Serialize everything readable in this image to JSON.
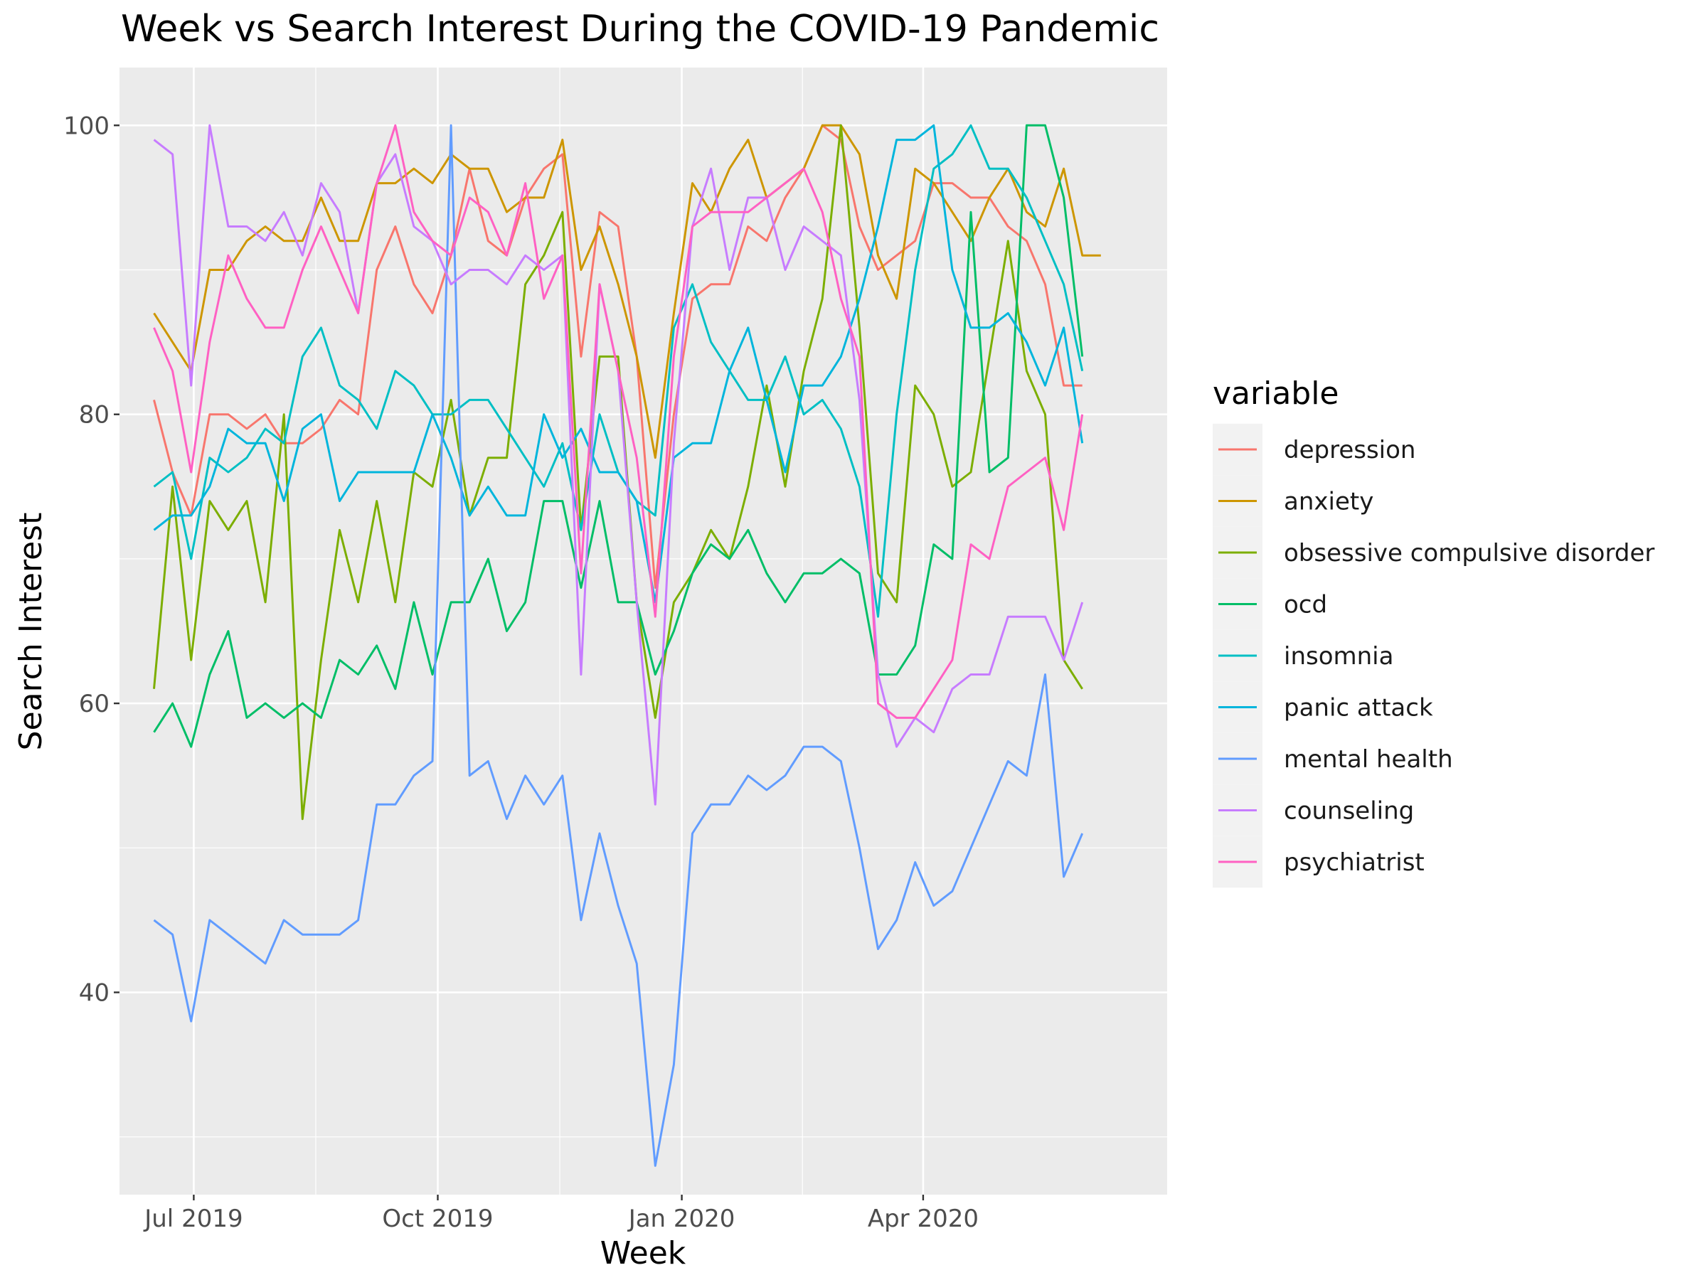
{
  "chart_data": {
    "type": "line",
    "title": "Week vs Search Interest During the COVID-19 Pandemic",
    "xlabel": "Week",
    "ylabel": "Search Interest",
    "x_tick_labels": [
      {
        "label": "Jul 2019",
        "date": "2019-07-01"
      },
      {
        "label": "Oct 2019",
        "date": "2019-10-01"
      },
      {
        "label": "Jan 2020",
        "date": "2020-01-01"
      },
      {
        "label": "Apr 2020",
        "date": "2020-04-01"
      }
    ],
    "y_ticks": [
      40,
      60,
      80,
      100
    ],
    "ylim": [
      26,
      104
    ],
    "xlim": [
      "2019-06-03",
      "2020-07-02"
    ],
    "grid": true,
    "legend": {
      "title": "variable",
      "position": "right"
    },
    "x": [
      "2019-06-16",
      "2019-06-23",
      "2019-06-30",
      "2019-07-07",
      "2019-07-14",
      "2019-07-21",
      "2019-07-28",
      "2019-08-04",
      "2019-08-11",
      "2019-08-18",
      "2019-08-25",
      "2019-09-01",
      "2019-09-08",
      "2019-09-15",
      "2019-09-22",
      "2019-09-29",
      "2019-10-06",
      "2019-10-13",
      "2019-10-20",
      "2019-10-27",
      "2019-11-03",
      "2019-11-10",
      "2019-11-17",
      "2019-11-24",
      "2019-12-01",
      "2019-12-08",
      "2019-12-15",
      "2019-12-22",
      "2019-12-29",
      "2020-01-05",
      "2020-01-12",
      "2020-01-19",
      "2020-01-26",
      "2020-02-02",
      "2020-02-09",
      "2020-02-16",
      "2020-02-23",
      "2020-03-01",
      "2020-03-08",
      "2020-03-15",
      "2020-03-22",
      "2020-03-29",
      "2020-04-05",
      "2020-04-12",
      "2020-04-19",
      "2020-04-26",
      "2020-05-03",
      "2020-05-10",
      "2020-05-17",
      "2020-05-24",
      "2020-05-31",
      "2020-06-07",
      "2020-06-14",
      "2020-06-21"
    ],
    "series": [
      {
        "name": "depression",
        "color": "#F8766D",
        "values": [
          81,
          76,
          73,
          80,
          80,
          79,
          80,
          78,
          78,
          79,
          81,
          80,
          90,
          93,
          89,
          87,
          91,
          97,
          92,
          91,
          95,
          97,
          98,
          84,
          94,
          93,
          84,
          68,
          80,
          88,
          89,
          89,
          93,
          92,
          95,
          97,
          100,
          99,
          93,
          90,
          91,
          92,
          96,
          96,
          95,
          95,
          93,
          92,
          89,
          82,
          82,
          null,
          null,
          null
        ]
      },
      {
        "name": "anxiety",
        "color": "#CD9600",
        "values": [
          87,
          85,
          83,
          90,
          90,
          92,
          93,
          92,
          92,
          95,
          92,
          92,
          96,
          96,
          97,
          96,
          98,
          97,
          97,
          94,
          95,
          95,
          99,
          90,
          93,
          89,
          84,
          77,
          87,
          96,
          94,
          97,
          99,
          95,
          96,
          97,
          100,
          100,
          98,
          91,
          88,
          97,
          96,
          94,
          92,
          95,
          97,
          94,
          93,
          97,
          91,
          91,
          null,
          null
        ]
      },
      {
        "name": "obsessive compulsive disorder",
        "color": "#7CAE00",
        "values": [
          61,
          75,
          63,
          74,
          72,
          74,
          67,
          80,
          52,
          63,
          72,
          67,
          74,
          67,
          76,
          75,
          81,
          73,
          77,
          77,
          89,
          91,
          94,
          72,
          84,
          84,
          67,
          59,
          67,
          69,
          72,
          70,
          75,
          82,
          75,
          83,
          88,
          100,
          86,
          69,
          67,
          82,
          80,
          75,
          76,
          84,
          92,
          83,
          80,
          63,
          61,
          null,
          null,
          null
        ]
      },
      {
        "name": "ocd",
        "color": "#00BE67",
        "values": [
          58,
          60,
          57,
          62,
          65,
          59,
          60,
          59,
          60,
          59,
          63,
          62,
          64,
          61,
          67,
          62,
          67,
          67,
          70,
          65,
          67,
          74,
          74,
          68,
          74,
          67,
          67,
          62,
          65,
          69,
          71,
          70,
          72,
          69,
          67,
          69,
          69,
          70,
          69,
          62,
          62,
          64,
          71,
          70,
          94,
          76,
          77,
          100,
          100,
          95,
          84,
          null,
          null,
          null
        ]
      },
      {
        "name": "insomnia",
        "color": "#00BFC4",
        "values": [
          75,
          76,
          70,
          77,
          76,
          77,
          79,
          78,
          84,
          86,
          82,
          81,
          79,
          83,
          82,
          80,
          80,
          81,
          81,
          79,
          77,
          75,
          78,
          72,
          80,
          76,
          74,
          73,
          86,
          89,
          85,
          83,
          81,
          81,
          84,
          80,
          81,
          79,
          75,
          66,
          80,
          90,
          97,
          98,
          100,
          97,
          97,
          95,
          92,
          89,
          83,
          null,
          null,
          null
        ]
      },
      {
        "name": "panic attack",
        "color": "#00B5DC",
        "values": [
          72,
          73,
          73,
          75,
          79,
          78,
          78,
          74,
          79,
          80,
          74,
          76,
          76,
          76,
          76,
          80,
          77,
          73,
          75,
          73,
          73,
          80,
          77,
          79,
          76,
          76,
          74,
          67,
          77,
          78,
          78,
          83,
          86,
          81,
          76,
          82,
          82,
          84,
          88,
          93,
          99,
          99,
          100,
          90,
          86,
          86,
          87,
          85,
          82,
          86,
          78,
          null,
          null,
          null
        ]
      },
      {
        "name": "mental health",
        "color": "#619CFF",
        "values": [
          45,
          44,
          38,
          45,
          44,
          43,
          42,
          45,
          44,
          44,
          44,
          45,
          53,
          53,
          55,
          56,
          100,
          55,
          56,
          52,
          55,
          53,
          55,
          45,
          51,
          46,
          42,
          28,
          35,
          51,
          53,
          53,
          55,
          54,
          55,
          57,
          57,
          56,
          50,
          43,
          45,
          49,
          46,
          47,
          50,
          53,
          56,
          55,
          62,
          48,
          51,
          null,
          null,
          null
        ]
      },
      {
        "name": "counseling",
        "color": "#C77CFF",
        "values": [
          99,
          98,
          82,
          100,
          93,
          93,
          92,
          94,
          91,
          96,
          94,
          87,
          96,
          98,
          93,
          92,
          89,
          90,
          90,
          89,
          91,
          90,
          91,
          62,
          89,
          83,
          67,
          53,
          78,
          93,
          97,
          90,
          95,
          95,
          90,
          93,
          92,
          91,
          81,
          62,
          57,
          59,
          58,
          61,
          62,
          62,
          66,
          66,
          66,
          63,
          67,
          null,
          null,
          null
        ]
      },
      {
        "name": "psychiatrist",
        "color": "#FF61C3",
        "values": [
          86,
          83,
          76,
          85,
          91,
          88,
          86,
          86,
          90,
          93,
          90,
          87,
          96,
          100,
          94,
          92,
          91,
          95,
          94,
          91,
          96,
          88,
          91,
          69,
          89,
          83,
          77,
          66,
          84,
          93,
          94,
          94,
          94,
          95,
          96,
          97,
          94,
          88,
          84,
          60,
          59,
          59,
          61,
          63,
          71,
          70,
          75,
          76,
          77,
          72,
          80,
          null,
          null,
          null
        ]
      }
    ]
  }
}
